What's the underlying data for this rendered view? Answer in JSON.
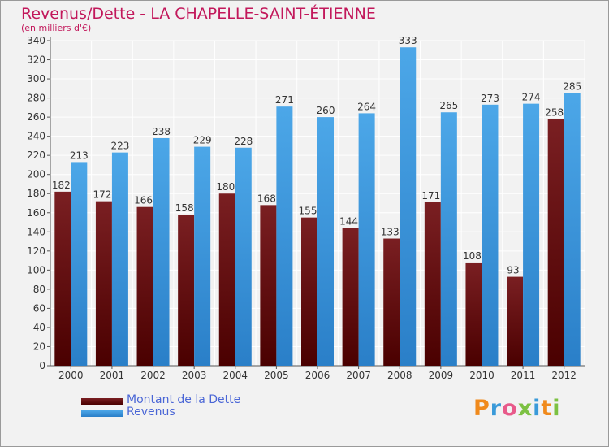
{
  "title": "Revenus/Dette - LA CHAPELLE-SAINT-ÉTIENNE",
  "subtitle": "(en milliers d'€)",
  "legend": {
    "debt_label": "Montant de la Dette",
    "revenue_label": "Revenus"
  },
  "logo": {
    "text": "Proxiti"
  },
  "colors": {
    "debt": "#7a1f22",
    "debt_dark": "#4a0000",
    "revenue": "#4ca7e8",
    "revenue_dark": "#2a7fc8",
    "title": "#c2185b",
    "legend_text": "#4a66d6",
    "background": "#f2f2f2",
    "grid": "#ffffff"
  },
  "chart_data": {
    "type": "bar",
    "title": "Revenus/Dette - LA CHAPELLE-SAINT-ÉTIENNE",
    "subtitle": "(en milliers d'€)",
    "categories": [
      "2000",
      "2001",
      "2002",
      "2003",
      "2004",
      "2005",
      "2006",
      "2007",
      "2008",
      "2009",
      "2010",
      "2011",
      "2012"
    ],
    "series": [
      {
        "name": "Montant de la Dette",
        "values": [
          182,
          172,
          166,
          158,
          180,
          168,
          155,
          144,
          133,
          171,
          108,
          93,
          258
        ]
      },
      {
        "name": "Revenus",
        "values": [
          213,
          223,
          238,
          229,
          228,
          271,
          260,
          264,
          333,
          265,
          273,
          274,
          285
        ]
      }
    ],
    "ylim": [
      0,
      340
    ],
    "yticks": [
      0,
      20,
      40,
      60,
      80,
      100,
      120,
      140,
      160,
      180,
      200,
      220,
      240,
      260,
      280,
      300,
      320,
      340
    ],
    "grid": true,
    "legend_position": "bottom-left"
  }
}
